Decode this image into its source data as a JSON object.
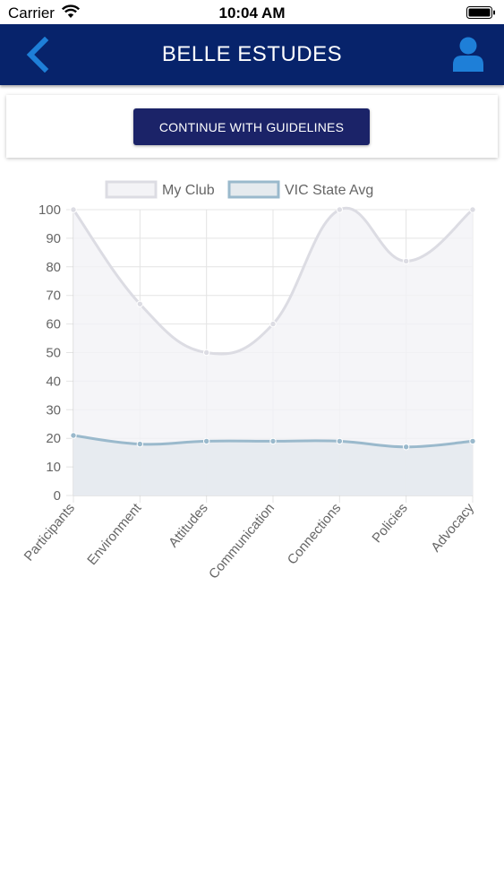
{
  "status_bar": {
    "carrier": "Carrier",
    "time": "10:04 AM"
  },
  "navbar": {
    "title": "BELLE ESTUDES",
    "back_icon": "chevron-left-icon",
    "profile_icon": "user-icon",
    "background_color": "#07236b",
    "icon_color": "#1e7fd8"
  },
  "card": {
    "continue_button_label": "CONTINUE WITH GUIDELINES",
    "button_color": "#1b2368"
  },
  "chart_data": {
    "type": "line",
    "categories": [
      "Participants",
      "Environment",
      "Attitudes",
      "Communication",
      "Connections",
      "Policies",
      "Advocacy"
    ],
    "series": [
      {
        "name": "My Club",
        "values": [
          100,
          67,
          50,
          60,
          100,
          82,
          100
        ],
        "color": "#dcdce3",
        "fill": "#f3f3f6"
      },
      {
        "name": "VIC State Avg",
        "values": [
          21,
          18,
          19,
          19,
          19,
          17,
          19
        ],
        "color": "#9ab9cc",
        "fill": "#e5eaee"
      }
    ],
    "ylim": [
      0,
      100
    ],
    "yticks": [
      "0",
      "10",
      "20",
      "30",
      "40",
      "50",
      "60",
      "70",
      "80",
      "90",
      "100"
    ],
    "grid": true,
    "legend_position": "top",
    "xlabel": "",
    "ylabel": "",
    "title": ""
  }
}
